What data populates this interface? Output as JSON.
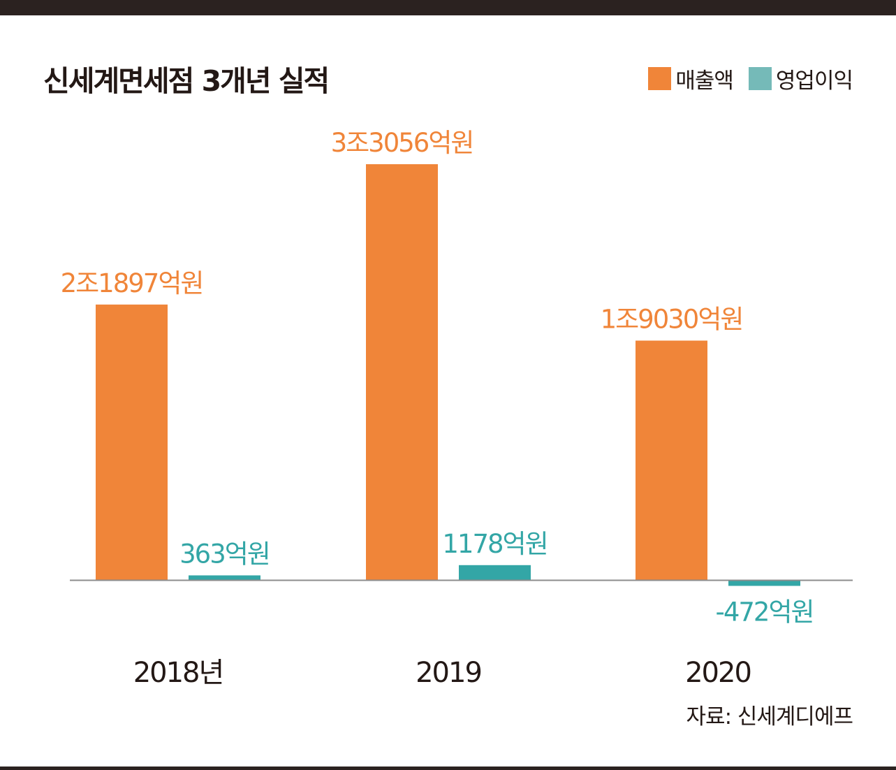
{
  "chart_data": {
    "type": "bar",
    "title": "신세계면세점 3개년 실적",
    "categories": [
      "2018년",
      "2019",
      "2020"
    ],
    "series": [
      {
        "name": "매출액",
        "color": "#f08539",
        "values": [
          21897,
          33056,
          19030
        ],
        "labels": [
          "2조1897억원",
          "3조3056억원",
          "1조9030억원"
        ]
      },
      {
        "name": "영업이익",
        "color": "#33a6a6",
        "values": [
          363,
          1178,
          -472
        ],
        "labels": [
          "363억원",
          "1178억원",
          "-472억원"
        ]
      }
    ],
    "legend_position": "top-right",
    "grid": false,
    "source": "자료: 신세계디에프"
  },
  "colors": {
    "frame": "#2b2220",
    "text": "#231815",
    "legend_swatch_1": "#f08539",
    "legend_swatch_2": "#75bab8",
    "axis": "#8c8c8c"
  }
}
